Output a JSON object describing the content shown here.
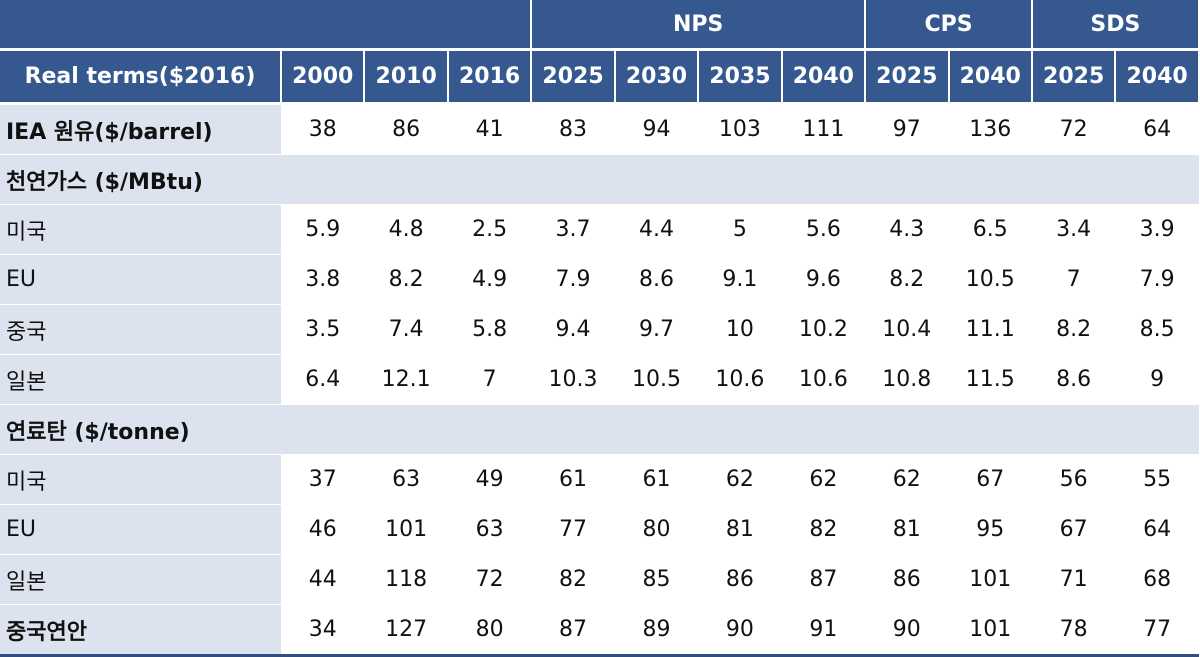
{
  "header": {
    "groups": [
      "NPS",
      "CPS",
      "SDS"
    ],
    "columns": [
      "Real terms($2016)",
      "2000",
      "2010",
      "2016",
      "2025",
      "2030",
      "2035",
      "2040",
      "2025",
      "2040",
      "2025",
      "2040"
    ]
  },
  "rows": [
    {
      "label": "IEA 원유($/barrel)",
      "values": [
        "38",
        "86",
        "41",
        "83",
        "94",
        "103",
        "111",
        "97",
        "136",
        "72",
        "64"
      ]
    },
    {
      "label": "천연가스 ($/MBtu)",
      "values": []
    },
    {
      "label": "미국",
      "values": [
        "5.9",
        "4.8",
        "2.5",
        "3.7",
        "4.4",
        "5",
        "5.6",
        "4.3",
        "6.5",
        "3.4",
        "3.9"
      ]
    },
    {
      "label": "EU",
      "values": [
        "3.8",
        "8.2",
        "4.9",
        "7.9",
        "8.6",
        "9.1",
        "9.6",
        "8.2",
        "10.5",
        "7",
        "7.9"
      ]
    },
    {
      "label": "중국",
      "values": [
        "3.5",
        "7.4",
        "5.8",
        "9.4",
        "9.7",
        "10",
        "10.2",
        "10.4",
        "11.1",
        "8.2",
        "8.5"
      ]
    },
    {
      "label": "일본",
      "values": [
        "6.4",
        "12.1",
        "7",
        "10.3",
        "10.5",
        "10.6",
        "10.6",
        "10.8",
        "11.5",
        "8.6",
        "9"
      ]
    },
    {
      "label": "연료탄 ($/tonne)",
      "values": []
    },
    {
      "label": "미국",
      "values": [
        "37",
        "63",
        "49",
        "61",
        "61",
        "62",
        "62",
        "62",
        "67",
        "56",
        "55"
      ]
    },
    {
      "label": "EU",
      "values": [
        "46",
        "101",
        "63",
        "77",
        "80",
        "81",
        "82",
        "81",
        "95",
        "67",
        "64"
      ]
    },
    {
      "label": "일본",
      "values": [
        "44",
        "118",
        "72",
        "82",
        "85",
        "86",
        "87",
        "86",
        "101",
        "71",
        "68"
      ]
    },
    {
      "label": "중국연안",
      "values": [
        "34",
        "127",
        "80",
        "87",
        "89",
        "90",
        "91",
        "90",
        "101",
        "78",
        "77"
      ]
    }
  ]
}
